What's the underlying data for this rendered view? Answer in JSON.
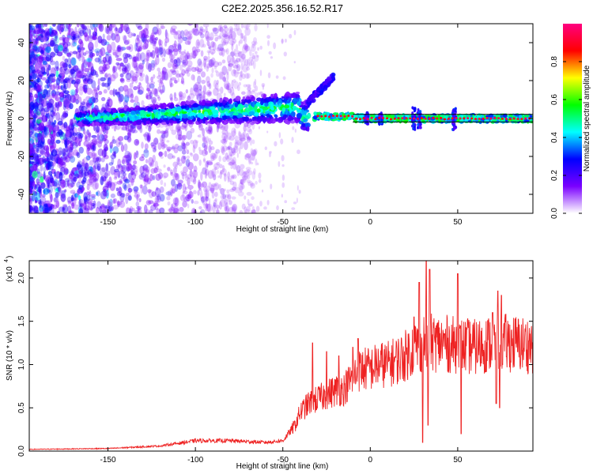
{
  "title": "C2E2.2025.356.16.52.R17",
  "chart_data": [
    {
      "type": "heatmap",
      "xlabel": "Height of straight line (km)",
      "ylabel": "Frequency (Hz)",
      "xlim": [
        -195,
        93
      ],
      "ylim": [
        -50,
        50
      ],
      "xticks": [
        -150,
        -100,
        -50,
        0,
        50
      ],
      "yticks": [
        -40,
        -20,
        0,
        20,
        40
      ],
      "colorbar": {
        "label": "Normalized spectral amplitude",
        "range": [
          0,
          1
        ],
        "ticks": [
          "0.0",
          "0.2",
          "0.4",
          "0.6",
          "0.8"
        ],
        "colormap": [
          "#ffffff",
          "#7a00ff",
          "#0000ff",
          "#00ffff",
          "#00ff00",
          "#ffff00",
          "#ff0000",
          "#ff0080"
        ]
      },
      "ridge": [
        {
          "x": -165,
          "f": 0
        },
        {
          "x": -150,
          "f": 0
        },
        {
          "x": -130,
          "f": 1
        },
        {
          "x": -110,
          "f": 2
        },
        {
          "x": -90,
          "f": 3
        },
        {
          "x": -70,
          "f": 4
        },
        {
          "x": -55,
          "f": 5
        },
        {
          "x": -40,
          "f": 6
        },
        {
          "x": -35,
          "f": 12
        },
        {
          "x": -28,
          "f": 18
        },
        {
          "x": -22,
          "f": 22
        },
        {
          "x": -30,
          "f": 1
        },
        {
          "x": -20,
          "f": 1
        },
        {
          "x": 0,
          "f": 0
        },
        {
          "x": 20,
          "f": 0
        },
        {
          "x": 50,
          "f": 0
        },
        {
          "x": 93,
          "f": 0
        }
      ],
      "grid": false,
      "legend": "right"
    },
    {
      "type": "line",
      "xlabel": "Height of straight line (km)",
      "ylabel": "SNR (10 * v/v)",
      "y_scale_label": "(x10",
      "y_scale_exp": "4",
      "xlim": [
        -195,
        93
      ],
      "ylim": [
        0,
        2.2
      ],
      "xticks": [
        -150,
        -100,
        -50,
        0,
        50
      ],
      "yticks": [
        "0.0",
        "0.5",
        "1.0",
        "1.5",
        "2.0"
      ],
      "series": [
        {
          "color": "#ee2222",
          "envelope": [
            [
              -195,
              0.02
            ],
            [
              -150,
              0.03
            ],
            [
              -120,
              0.06
            ],
            [
              -100,
              0.12
            ],
            [
              -80,
              0.12
            ],
            [
              -60,
              0.1
            ],
            [
              -50,
              0.12
            ],
            [
              -43,
              0.3
            ],
            [
              -40,
              0.45
            ],
            [
              -35,
              0.55
            ],
            [
              -30,
              0.6
            ],
            [
              -25,
              0.65
            ],
            [
              -20,
              0.7
            ],
            [
              -15,
              0.72
            ],
            [
              -10,
              0.85
            ],
            [
              -5,
              0.95
            ],
            [
              0,
              0.95
            ],
            [
              5,
              1.0
            ],
            [
              10,
              1.0
            ],
            [
              15,
              1.05
            ],
            [
              20,
              1.1
            ],
            [
              25,
              1.2
            ],
            [
              30,
              1.25
            ],
            [
              35,
              1.25
            ],
            [
              40,
              1.25
            ],
            [
              50,
              1.22
            ],
            [
              60,
              1.2
            ],
            [
              70,
              1.25
            ],
            [
              80,
              1.25
            ],
            [
              93,
              1.22
            ]
          ],
          "spikes": [
            [
              -33,
              1.25
            ],
            [
              -25,
              1.15
            ],
            [
              -18,
              1.1
            ],
            [
              -10,
              1.2
            ],
            [
              -7,
              1.3
            ],
            [
              25,
              1.55
            ],
            [
              28,
              1.95
            ],
            [
              32,
              2.2
            ],
            [
              34,
              2.1
            ],
            [
              50,
              2.05
            ],
            [
              52,
              1.6
            ],
            [
              70,
              1.6
            ],
            [
              73,
              1.85
            ],
            [
              75,
              1.8
            ]
          ],
          "dips": [
            [
              30,
              0.1
            ],
            [
              33,
              0.3
            ],
            [
              52,
              0.2
            ],
            [
              72,
              0.55
            ],
            [
              74,
              0.5
            ]
          ]
        }
      ],
      "grid": false
    }
  ]
}
